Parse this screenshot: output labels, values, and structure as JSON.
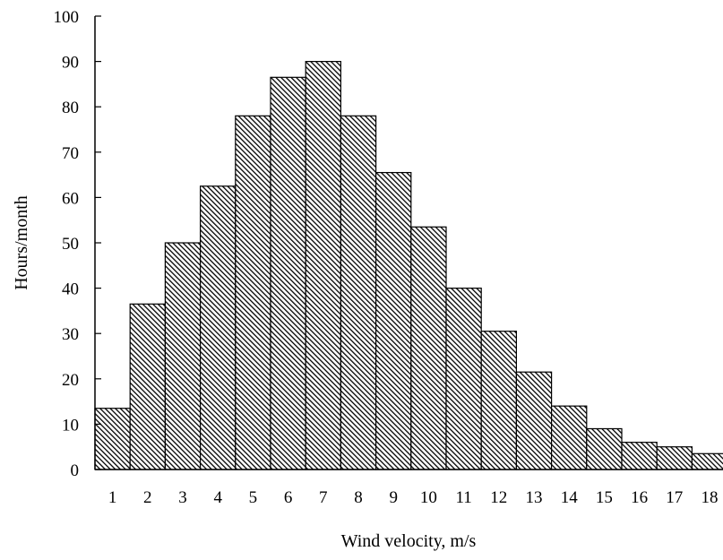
{
  "chart_data": {
    "type": "bar",
    "title": "",
    "xlabel": "Wind velocity, m/s",
    "ylabel": "Hours/month",
    "categories": [
      "1",
      "2",
      "3",
      "4",
      "5",
      "6",
      "7",
      "8",
      "9",
      "10",
      "11",
      "12",
      "13",
      "14",
      "15",
      "16",
      "17",
      "18"
    ],
    "values": [
      13.5,
      36.5,
      50,
      62.5,
      78,
      86.5,
      90,
      78,
      65.5,
      53.5,
      40,
      30.5,
      21.5,
      14,
      9,
      6,
      5,
      3.5
    ],
    "ylim": [
      0,
      100
    ],
    "yticks": [
      0,
      10,
      20,
      30,
      40,
      50,
      60,
      70,
      80,
      90,
      100
    ],
    "grid": false,
    "legend": "none",
    "bar_fill": "diagonal hatch",
    "colors": {
      "bar_stroke": "#000000",
      "hatch": "#000000",
      "background": "#ffffff"
    }
  }
}
